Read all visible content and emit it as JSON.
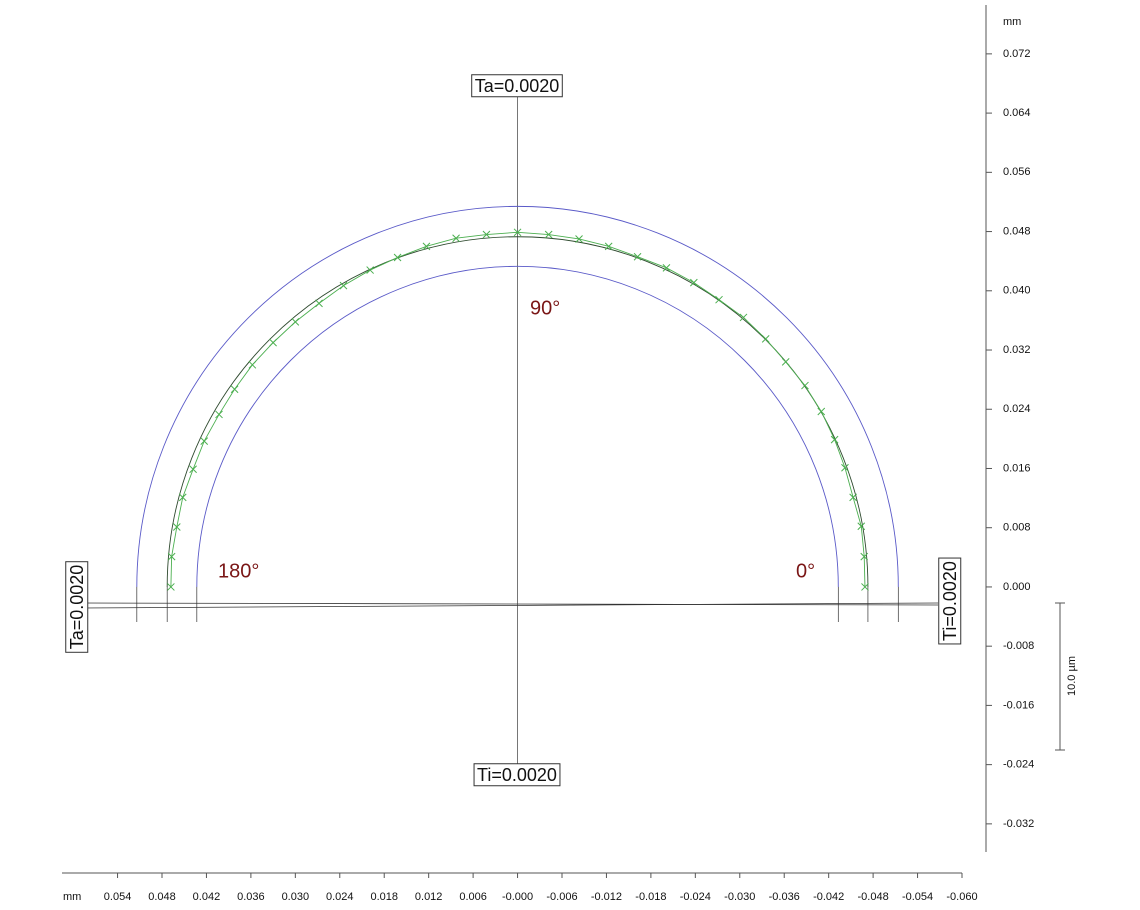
{
  "chart_data": {
    "type": "profile",
    "xlabel": "mm",
    "ylabel": "mm",
    "xlim": [
      0.0615,
      -0.06
    ],
    "ylim": [
      -0.0358,
      0.0786
    ],
    "xticks": [
      {
        "value": 0.054,
        "label": "0.054"
      },
      {
        "value": 0.048,
        "label": "0.048"
      },
      {
        "value": 0.042,
        "label": "0.042"
      },
      {
        "value": 0.036,
        "label": "0.036"
      },
      {
        "value": 0.03,
        "label": "0.030"
      },
      {
        "value": 0.024,
        "label": "0.024"
      },
      {
        "value": 0.018,
        "label": "0.018"
      },
      {
        "value": 0.012,
        "label": "0.012"
      },
      {
        "value": 0.006,
        "label": "0.006"
      },
      {
        "value": 0,
        "label": "-0.000"
      },
      {
        "value": -0.006,
        "label": "-0.006"
      },
      {
        "value": -0.012,
        "label": "-0.012"
      },
      {
        "value": -0.018,
        "label": "-0.018"
      },
      {
        "value": -0.024,
        "label": "-0.024"
      },
      {
        "value": -0.03,
        "label": "-0.030"
      },
      {
        "value": -0.036,
        "label": "-0.036"
      },
      {
        "value": -0.042,
        "label": "-0.042"
      },
      {
        "value": -0.048,
        "label": "-0.048"
      },
      {
        "value": -0.054,
        "label": "-0.054"
      },
      {
        "value": -0.06,
        "label": "-0.060"
      }
    ],
    "yticks": [
      {
        "value": 0.072,
        "label": "0.072"
      },
      {
        "value": 0.064,
        "label": "0.064"
      },
      {
        "value": 0.056,
        "label": "0.056"
      },
      {
        "value": 0.048,
        "label": "0.048"
      },
      {
        "value": 0.04,
        "label": "0.040"
      },
      {
        "value": 0.032,
        "label": "0.032"
      },
      {
        "value": 0.024,
        "label": "0.024"
      },
      {
        "value": 0.016,
        "label": "0.016"
      },
      {
        "value": 0.008,
        "label": "0.008"
      },
      {
        "value": 0,
        "label": "0.000"
      },
      {
        "value": -0.008,
        "label": "-0.008"
      },
      {
        "value": -0.016,
        "label": "-0.016"
      },
      {
        "value": -0.024,
        "label": "-0.024"
      },
      {
        "value": -0.032,
        "label": "-0.032"
      }
    ],
    "circles": [
      {
        "radius": 0.0514,
        "color": "#5a5ac8"
      },
      {
        "radius": 0.0473,
        "color": "#2f4a2f"
      },
      {
        "radius": 0.0433,
        "color": "#5a5ac8"
      }
    ],
    "series": [
      {
        "color": "#4caf50",
        "x": [
          -0.0469,
          -0.0468,
          -0.0464,
          -0.0453,
          -0.0442,
          -0.0428,
          -0.041,
          -0.0388,
          -0.0362,
          -0.0335,
          -0.0305,
          -0.0272,
          -0.0238,
          -0.0201,
          -0.0162,
          -0.0123,
          -0.0083,
          -0.0042,
          0,
          0.0042,
          0.0083,
          0.0123,
          0.0162,
          0.0199,
          0.0235,
          0.0268,
          0.03,
          0.033,
          0.0358,
          0.0382,
          0.0403,
          0.0423,
          0.0438,
          0.0452,
          0.046,
          0.0467,
          0.0468
        ],
        "values": [
          0,
          0.0041,
          0.0082,
          0.0121,
          0.0161,
          0.0199,
          0.0237,
          0.0272,
          0.0304,
          0.0335,
          0.0364,
          0.0388,
          0.0411,
          0.0431,
          0.0446,
          0.046,
          0.047,
          0.0476,
          0.0479,
          0.0476,
          0.0471,
          0.046,
          0.0445,
          0.0428,
          0.0407,
          0.0383,
          0.0358,
          0.033,
          0.03,
          0.0267,
          0.0233,
          0.0197,
          0.0159,
          0.0121,
          0.0081,
          0.0041,
          0
        ]
      }
    ],
    "annotations": [
      "Ta=0.0020",
      "Ti=0.0020",
      "Ta=0.0020",
      "Ti=0.0020",
      "90°",
      "0°",
      "180°"
    ],
    "scale_label": "10.0 µm"
  }
}
